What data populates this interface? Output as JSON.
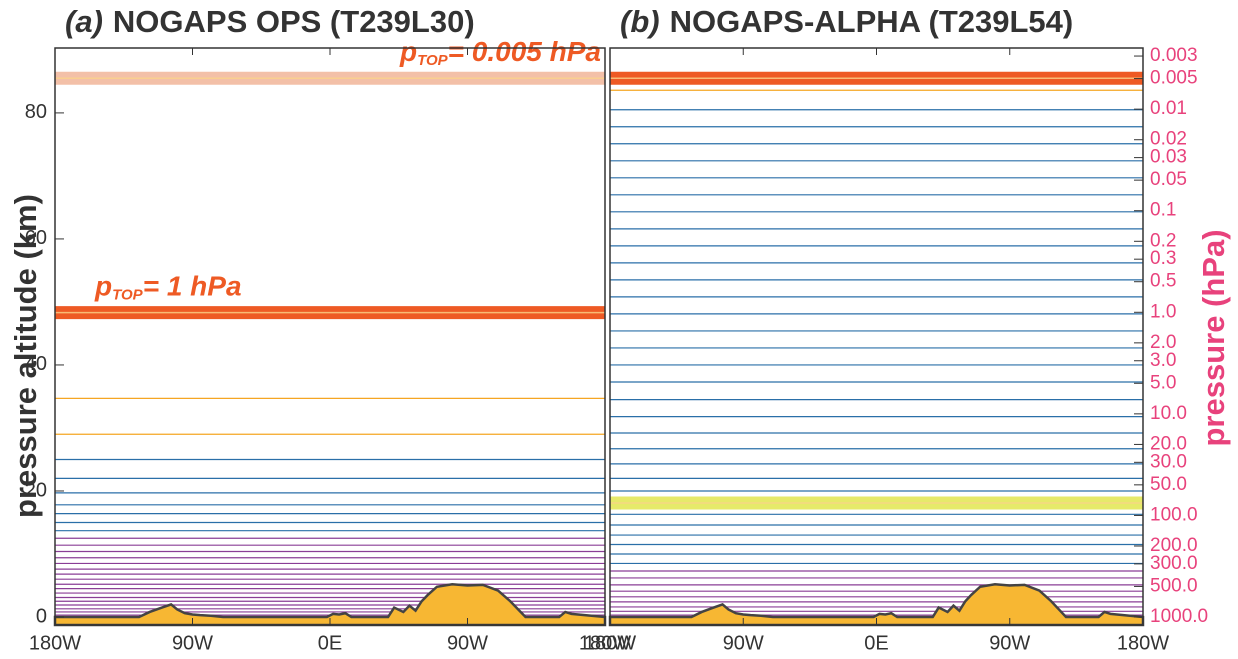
{
  "chart_data": [
    {
      "type": "levels",
      "title_prefix": "(a)",
      "title": "NOGAPS OPS (T239L30)",
      "ylabel": "pressure altitude (km)",
      "xlim": [
        -180,
        180
      ],
      "xticks": [
        {
          "value": -180,
          "label": "180W"
        },
        {
          "value": -90,
          "label": "90W"
        },
        {
          "value": 0,
          "label": "0E"
        },
        {
          "value": 90,
          "label": "90W"
        },
        {
          "value": 180,
          "label": "180W"
        }
      ],
      "ylim": [
        -1.27,
        90.3
      ],
      "yticks": [
        0,
        20,
        40,
        60,
        80
      ],
      "bands": [
        {
          "value": 48.3,
          "color": "#ee5a24",
          "label_main": "p",
          "label_sub": "TOP",
          "label_tail": "= 1 hPa"
        },
        {
          "value": 85.5,
          "color": "#f3c0a8",
          "label_main": "p",
          "label_sub": "TOP",
          "label_tail": "= 0.005 hPa"
        }
      ],
      "series": [
        {
          "color": "#8a3e96",
          "values": [
            0.3,
            0.8,
            1.3,
            1.9,
            2.5,
            3.1,
            3.8,
            4.5,
            5.2,
            6.0,
            6.8,
            7.6,
            8.5,
            9.4,
            10.4,
            11.4,
            12.5
          ]
        },
        {
          "color": "#2a6fa8",
          "values": [
            13.7,
            15.0,
            16.4,
            17.8,
            19.7,
            22.0,
            25.0
          ]
        },
        {
          "color": "#f5a623",
          "values": [
            29.0,
            34.7
          ]
        }
      ],
      "terrain": {
        "color": "#f7b733",
        "x": [
          -180,
          -125,
          -118,
          -110,
          -104,
          -100,
          -95,
          -90,
          -85,
          -78,
          -70,
          -2,
          2,
          6,
          10,
          14,
          38,
          42,
          48,
          52,
          56,
          60,
          64,
          70,
          80,
          90,
          100,
          110,
          118,
          124,
          128,
          150,
          154,
          158,
          180
        ],
        "values": [
          0,
          0,
          0.8,
          1.5,
          2.0,
          1.2,
          0.6,
          0.4,
          0.3,
          0.2,
          0,
          0,
          0.5,
          0.4,
          0.6,
          0,
          0,
          1.5,
          0.8,
          1.8,
          1.0,
          2.5,
          3.5,
          4.8,
          5.2,
          5.0,
          5.1,
          4.2,
          2.5,
          1.0,
          0,
          0,
          0.8,
          0.5,
          0
        ]
      }
    },
    {
      "type": "levels",
      "title_prefix": "(b)",
      "title": "NOGAPS-ALPHA (T239L54)",
      "y2label": "pressure (hPa)",
      "xlim": [
        -180,
        180
      ],
      "xticks": [
        {
          "value": -180,
          "label": "180W"
        },
        {
          "value": -90,
          "label": "90W"
        },
        {
          "value": 0,
          "label": "0E"
        },
        {
          "value": 90,
          "label": "90W"
        },
        {
          "value": 180,
          "label": "180W"
        }
      ],
      "ylim": [
        -1.27,
        90.3
      ],
      "y2scale": "log",
      "y2lim": [
        1199,
        0.0025
      ],
      "y2ticks": [
        0.003,
        0.005,
        0.01,
        0.02,
        0.03,
        0.05,
        0.1,
        0.2,
        0.3,
        0.5,
        {
          "value": 1,
          "label": "1.0"
        },
        {
          "value": 2,
          "label": "2.0"
        },
        {
          "value": 3,
          "label": "3.0"
        },
        {
          "value": 5,
          "label": "5.0"
        },
        {
          "value": 10,
          "label": "10.0"
        },
        {
          "value": 20,
          "label": "20.0"
        },
        {
          "value": 30,
          "label": "30.0"
        },
        {
          "value": 50,
          "label": "50.0"
        },
        {
          "value": 100,
          "label": "100.0"
        },
        {
          "value": 200,
          "label": "200.0"
        },
        {
          "value": 300,
          "label": "300.0"
        },
        {
          "value": 500,
          "label": "500.0"
        },
        {
          "value": 1000,
          "label": "1000.0"
        }
      ],
      "bands": [
        {
          "value": 18.1,
          "color": "#e6ea6a"
        },
        {
          "value": 85.5,
          "color": "#ee5a24"
        }
      ],
      "series": [
        {
          "color": "#8a3e96",
          "values": [
            0.3,
            0.9,
            1.6,
            2.4,
            3.2,
            4.1,
            5.1,
            6.2,
            7.3
          ]
        },
        {
          "color": "#2a6fa8",
          "values": [
            8.5,
            10.0,
            11.5,
            13.0,
            14.6,
            16.3,
            20.0,
            22.0,
            24.3,
            26.7,
            29.2,
            31.8,
            34.5,
            37.3,
            40.0,
            42.7,
            45.4,
            48.1,
            50.8,
            53.5,
            56.2,
            58.9,
            61.6,
            64.3,
            67.0,
            69.7,
            72.4,
            75.1,
            77.8,
            80.5
          ]
        },
        {
          "color": "#f5a623",
          "values": [
            83.6
          ]
        }
      ],
      "terrain": {
        "color": "#f7b733",
        "x": [
          -180,
          -125,
          -118,
          -110,
          -104,
          -100,
          -95,
          -90,
          -85,
          -78,
          -70,
          -2,
          2,
          6,
          10,
          14,
          38,
          42,
          48,
          52,
          56,
          60,
          64,
          70,
          80,
          90,
          100,
          110,
          118,
          124,
          128,
          150,
          154,
          158,
          180
        ],
        "values": [
          0,
          0,
          0.8,
          1.5,
          2.0,
          1.2,
          0.6,
          0.4,
          0.3,
          0.2,
          0,
          0,
          0.5,
          0.4,
          0.6,
          0,
          0,
          1.5,
          0.8,
          1.8,
          1.0,
          2.5,
          3.5,
          4.8,
          5.2,
          5.0,
          5.1,
          4.2,
          2.5,
          1.0,
          0,
          0,
          0.8,
          0.5,
          0
        ]
      }
    }
  ]
}
